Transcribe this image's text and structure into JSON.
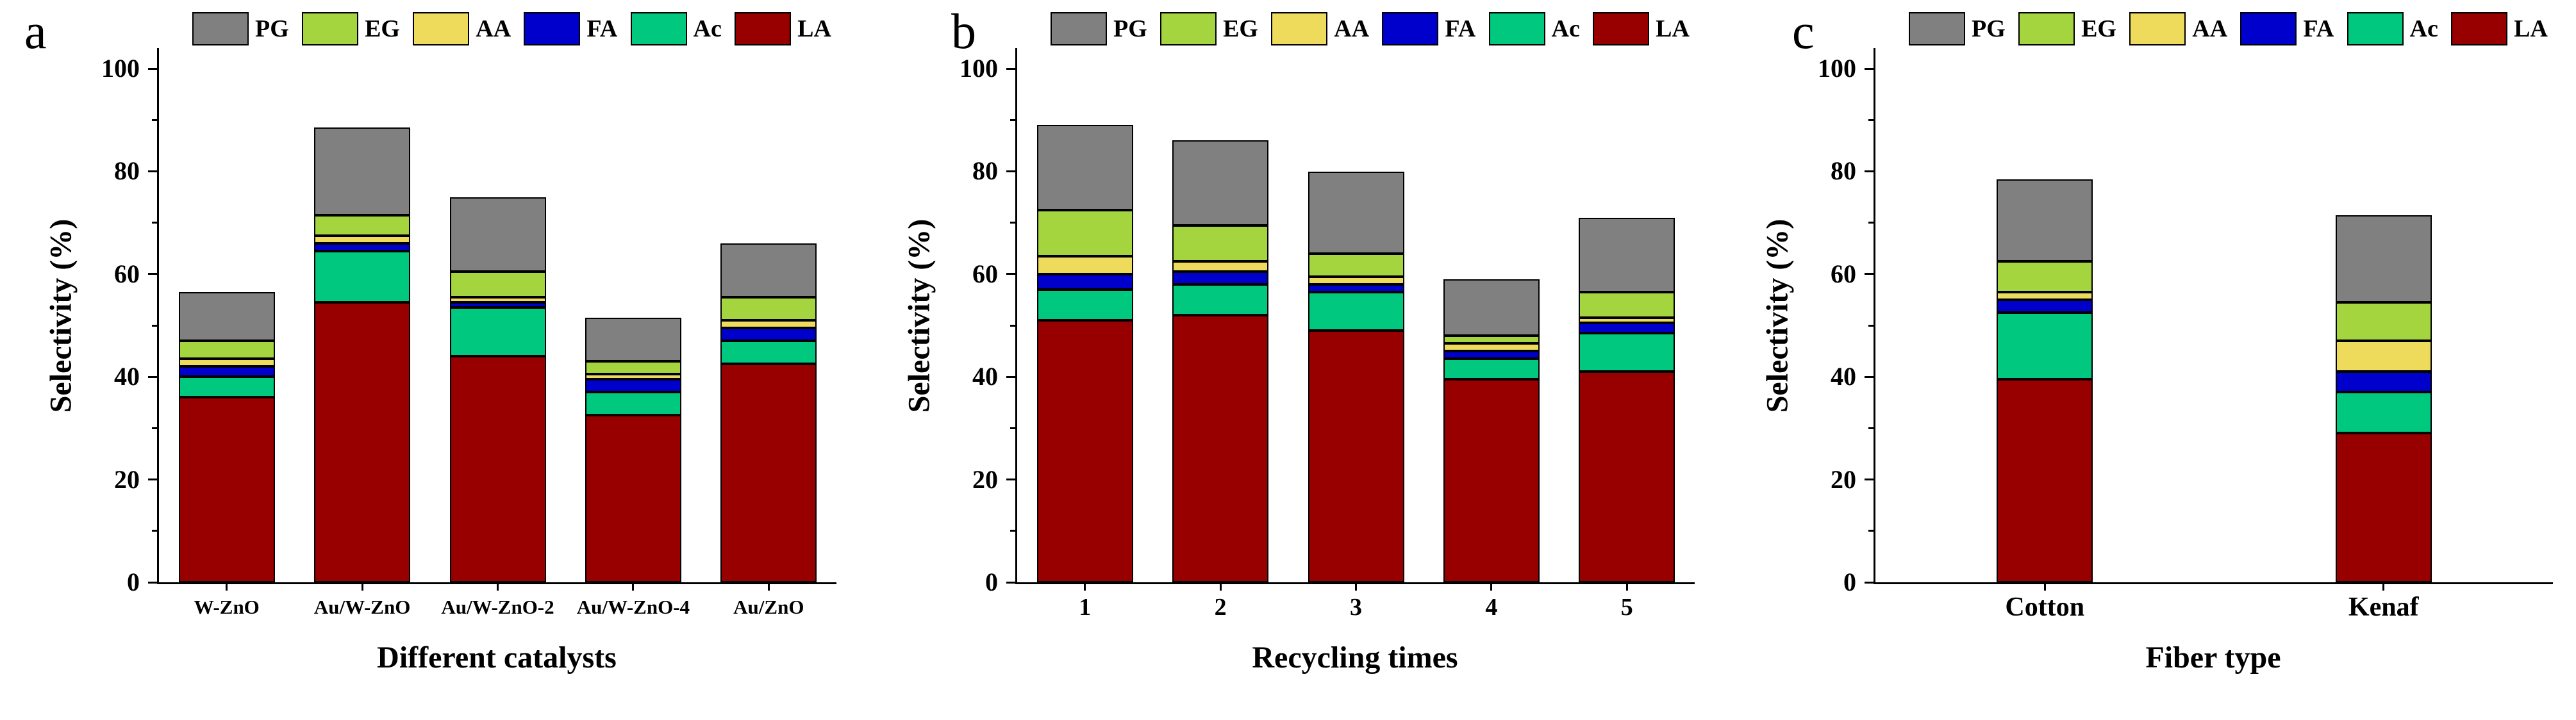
{
  "series_colors": {
    "PG": "#808080",
    "EG": "#A4D53E",
    "AA": "#EEDB5C",
    "FA": "#0000CD",
    "Ac": "#00C87E",
    "LA": "#980000"
  },
  "axis_color": "#000000",
  "chart_data": [
    {
      "type": "bar",
      "stacked": true,
      "panel_letter": "a",
      "title": "",
      "xlabel": "Different catalysts",
      "ylabel": "Selectivity (%)",
      "ylim": [
        0,
        104
      ],
      "yticks": [
        0,
        20,
        40,
        60,
        80,
        100
      ],
      "yticks_minor": [
        10,
        30,
        50,
        70,
        90
      ],
      "grid": false,
      "legend_position": "top",
      "legend": [
        "PG",
        "EG",
        "AA",
        "FA",
        "Ac",
        "LA"
      ],
      "categories": [
        "W-ZnO",
        "Au/W-ZnO",
        "Au/W-ZnO-2",
        "Au/W-ZnO-4",
        "Au/ZnO"
      ],
      "series": [
        {
          "name": "LA",
          "values": [
            36,
            54.5,
            44,
            32.5,
            42.5
          ]
        },
        {
          "name": "Ac",
          "values": [
            4,
            10,
            9.5,
            4.5,
            4.5
          ]
        },
        {
          "name": "FA",
          "values": [
            2,
            1.5,
            1,
            2.5,
            2.5
          ]
        },
        {
          "name": "AA",
          "values": [
            1.5,
            1.5,
            1,
            1,
            1.5
          ]
        },
        {
          "name": "EG",
          "values": [
            3.5,
            4,
            5,
            2.5,
            4.5
          ]
        },
        {
          "name": "PG",
          "values": [
            9.5,
            17,
            14.5,
            8.5,
            10.5
          ]
        }
      ]
    },
    {
      "type": "bar",
      "stacked": true,
      "panel_letter": "b",
      "title": "",
      "xlabel": "Recycling times",
      "ylabel": "Selectivity (%)",
      "ylim": [
        0,
        104
      ],
      "yticks": [
        0,
        20,
        40,
        60,
        80,
        100
      ],
      "yticks_minor": [
        10,
        30,
        50,
        70,
        90
      ],
      "grid": false,
      "legend_position": "top",
      "legend": [
        "PG",
        "EG",
        "AA",
        "FA",
        "Ac",
        "LA"
      ],
      "categories": [
        "1",
        "2",
        "3",
        "4",
        "5"
      ],
      "series": [
        {
          "name": "LA",
          "values": [
            51,
            52,
            49,
            39.5,
            41
          ]
        },
        {
          "name": "Ac",
          "values": [
            6,
            6,
            7.5,
            4,
            7.5
          ]
        },
        {
          "name": "FA",
          "values": [
            3,
            2.5,
            1.5,
            1.5,
            2
          ]
        },
        {
          "name": "AA",
          "values": [
            3.5,
            2,
            1.5,
            1.5,
            1
          ]
        },
        {
          "name": "EG",
          "values": [
            9,
            7,
            4.5,
            1.5,
            5
          ]
        },
        {
          "name": "PG",
          "values": [
            16.5,
            16.5,
            16,
            11,
            14.5
          ]
        }
      ]
    },
    {
      "type": "bar",
      "stacked": true,
      "panel_letter": "c",
      "title": "",
      "xlabel": "Fiber type",
      "ylabel": "Selectivity (%)",
      "ylim": [
        0,
        104
      ],
      "yticks": [
        0,
        20,
        40,
        60,
        80,
        100
      ],
      "yticks_minor": [
        10,
        30,
        50,
        70,
        90
      ],
      "grid": false,
      "legend_position": "top",
      "legend": [
        "PG",
        "EG",
        "AA",
        "FA",
        "Ac",
        "LA"
      ],
      "categories": [
        "Cotton",
        "Kenaf"
      ],
      "series": [
        {
          "name": "LA",
          "values": [
            39.5,
            29
          ]
        },
        {
          "name": "Ac",
          "values": [
            13,
            8
          ]
        },
        {
          "name": "FA",
          "values": [
            2.5,
            4
          ]
        },
        {
          "name": "AA",
          "values": [
            1.5,
            6
          ]
        },
        {
          "name": "EG",
          "values": [
            6,
            7.5
          ]
        },
        {
          "name": "PG",
          "values": [
            16,
            17
          ]
        }
      ]
    }
  ]
}
